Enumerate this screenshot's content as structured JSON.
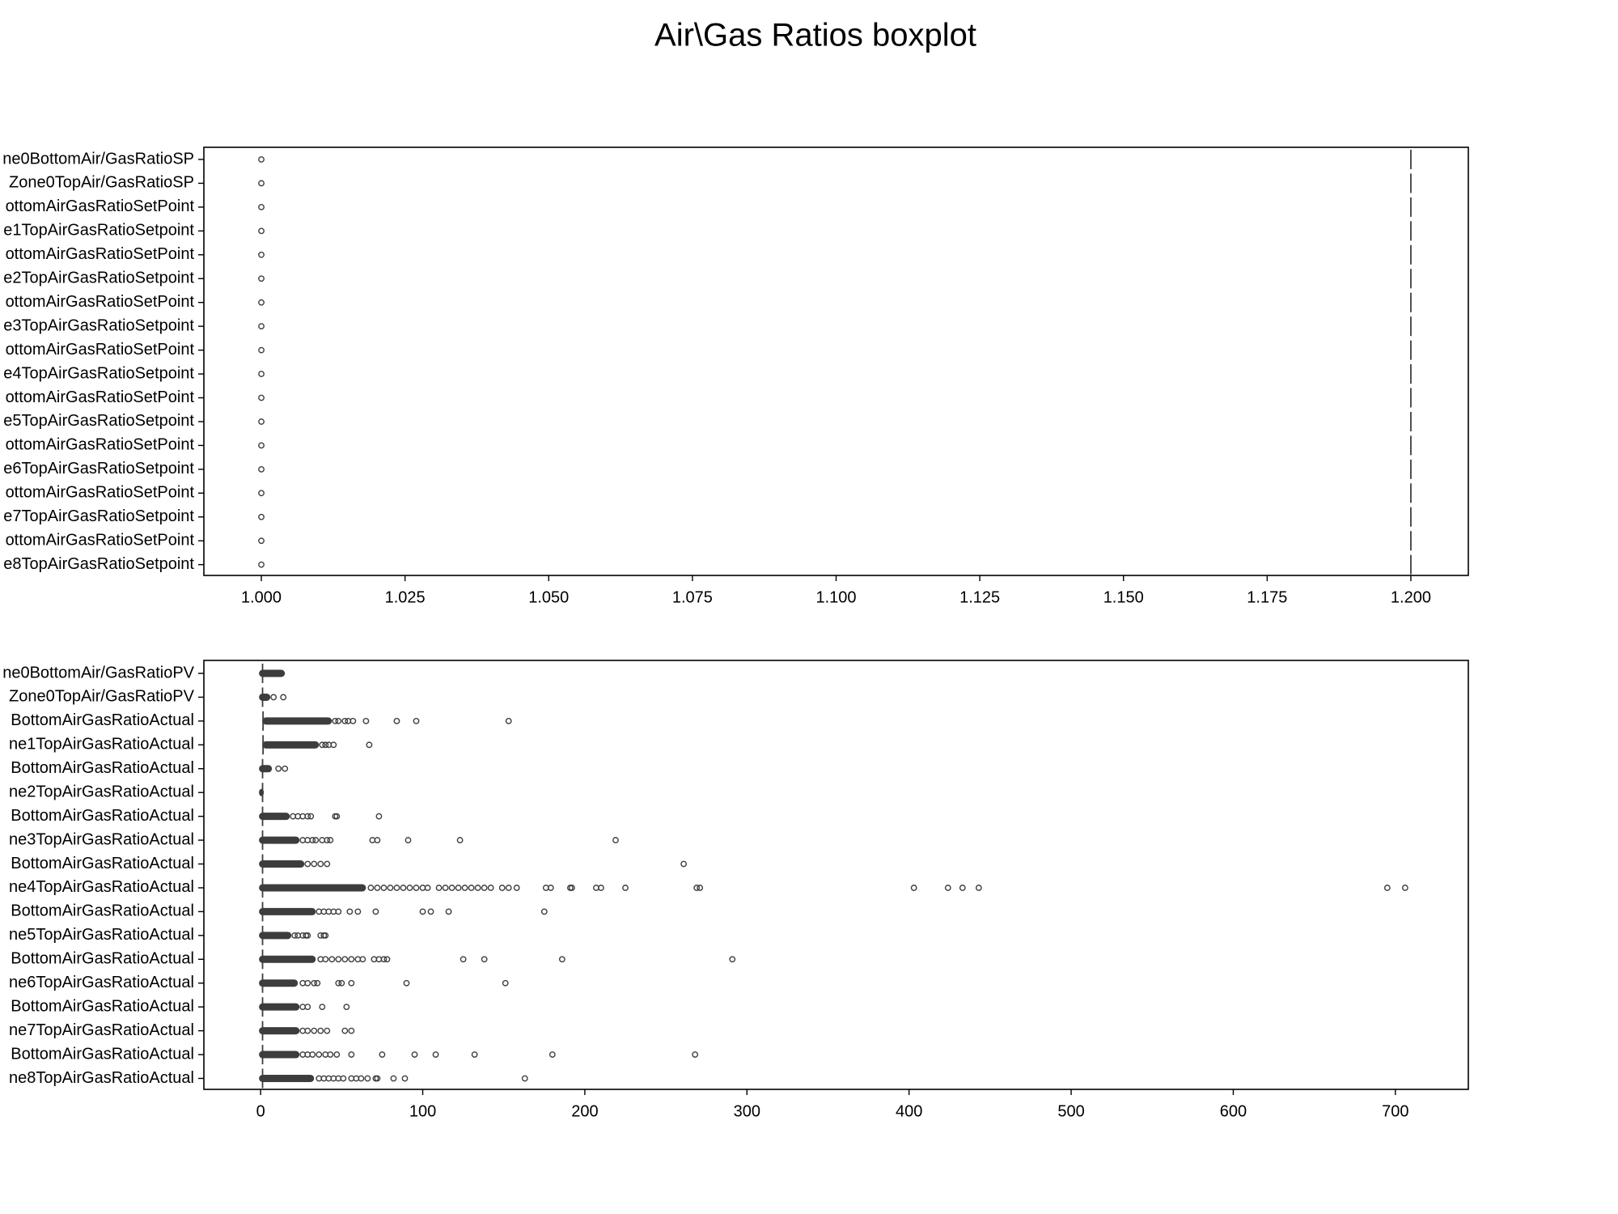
{
  "figure": {
    "title": "Air\\Gas Ratios boxplot"
  },
  "colors": {
    "box": "#3d3d3d",
    "axis": "#000000",
    "background": "#ffffff"
  },
  "chart_data": [
    {
      "type": "boxplot",
      "orientation": "horizontal",
      "title": "",
      "xlim": [
        0.99,
        1.21
      ],
      "grid": false,
      "xticks": [
        1.0,
        1.025,
        1.05,
        1.075,
        1.1,
        1.125,
        1.15,
        1.175,
        1.2
      ],
      "xtick_labels": [
        "1.000",
        "1.025",
        "1.050",
        "1.075",
        "1.100",
        "1.125",
        "1.150",
        "1.175",
        "1.200"
      ],
      "series": [
        {
          "label": "ne0BottomAir/GasRatioSP",
          "median": 1.2,
          "outliers": [
            1.0
          ]
        },
        {
          "label": "Zone0TopAir/GasRatioSP",
          "median": 1.2,
          "outliers": [
            1.0
          ]
        },
        {
          "label": "ottomAirGasRatioSetPoint",
          "median": 1.2,
          "outliers": [
            1.0
          ]
        },
        {
          "label": "e1TopAirGasRatioSetpoint",
          "median": 1.2,
          "outliers": [
            1.0
          ]
        },
        {
          "label": "ottomAirGasRatioSetPoint",
          "median": 1.2,
          "outliers": [
            1.0
          ]
        },
        {
          "label": "e2TopAirGasRatioSetpoint",
          "median": 1.2,
          "outliers": [
            1.0
          ]
        },
        {
          "label": "ottomAirGasRatioSetPoint",
          "median": 1.2,
          "outliers": [
            1.0
          ]
        },
        {
          "label": "e3TopAirGasRatioSetpoint",
          "median": 1.2,
          "outliers": [
            1.0
          ]
        },
        {
          "label": "ottomAirGasRatioSetPoint",
          "median": 1.2,
          "outliers": [
            1.0
          ]
        },
        {
          "label": "e4TopAirGasRatioSetpoint",
          "median": 1.2,
          "outliers": [
            1.0
          ]
        },
        {
          "label": "ottomAirGasRatioSetPoint",
          "median": 1.2,
          "outliers": [
            1.0
          ]
        },
        {
          "label": "e5TopAirGasRatioSetpoint",
          "median": 1.2,
          "outliers": [
            1.0
          ]
        },
        {
          "label": "ottomAirGasRatioSetPoint",
          "median": 1.2,
          "outliers": [
            1.0
          ]
        },
        {
          "label": "e6TopAirGasRatioSetpoint",
          "median": 1.2,
          "outliers": [
            1.0
          ]
        },
        {
          "label": "ottomAirGasRatioSetPoint",
          "median": 1.2,
          "outliers": [
            1.0
          ]
        },
        {
          "label": "e7TopAirGasRatioSetpoint",
          "median": 1.2,
          "outliers": [
            1.0
          ]
        },
        {
          "label": "ottomAirGasRatioSetPoint",
          "median": 1.2,
          "outliers": [
            1.0
          ]
        },
        {
          "label": "e8TopAirGasRatioSetpoint",
          "median": 1.2,
          "outliers": [
            1.0
          ]
        }
      ]
    },
    {
      "type": "boxplot",
      "orientation": "horizontal",
      "title": "",
      "xlim": [
        -35,
        745
      ],
      "grid": false,
      "xticks": [
        0,
        100,
        200,
        300,
        400,
        500,
        600,
        700
      ],
      "xtick_labels": [
        "0",
        "100",
        "200",
        "300",
        "400",
        "500",
        "600",
        "700"
      ],
      "series": [
        {
          "label": "ne0BottomAir/GasRatioPV",
          "median": 1.2,
          "dense_range": [
            -1,
            15
          ],
          "outliers": []
        },
        {
          "label": "Zone0TopAir/GasRatioPV",
          "median": 1.2,
          "dense_range": [
            -1,
            6
          ],
          "outliers": [
            8,
            14
          ]
        },
        {
          "label": "BottomAirGasRatioActual",
          "median": 1.5,
          "dense_range": [
            1,
            44
          ],
          "outliers": [
            46,
            48,
            52,
            54,
            57,
            65,
            84,
            96,
            153
          ]
        },
        {
          "label": "ne1TopAirGasRatioActual",
          "median": 1.5,
          "dense_range": [
            1,
            36
          ],
          "outliers": [
            38,
            40,
            42,
            45,
            67
          ]
        },
        {
          "label": "BottomAirGasRatioActual",
          "median": 1.2,
          "dense_range": [
            -1,
            7
          ],
          "outliers": [
            11,
            15
          ]
        },
        {
          "label": "ne2TopAirGasRatioActual",
          "median": 1.2,
          "dense_range": [
            -1,
            2
          ],
          "outliers": []
        },
        {
          "label": "BottomAirGasRatioActual",
          "median": 1.2,
          "dense_range": [
            -1,
            18
          ],
          "outliers": [
            20,
            23,
            26,
            29,
            31,
            46,
            47,
            73
          ]
        },
        {
          "label": "ne3TopAirGasRatioActual",
          "median": 1.2,
          "dense_range": [
            -1,
            24
          ],
          "outliers": [
            26,
            29,
            32,
            34,
            38,
            41,
            43,
            69,
            72,
            91,
            123,
            219
          ]
        },
        {
          "label": "BottomAirGasRatioActual",
          "median": 1.2,
          "dense_range": [
            -1,
            27
          ],
          "outliers": [
            29,
            33,
            37,
            41,
            261
          ]
        },
        {
          "label": "ne4TopAirGasRatioActual",
          "median": 1.2,
          "dense_range": [
            -1,
            65
          ],
          "outliers": [
            68,
            72,
            76,
            80,
            84,
            88,
            92,
            96,
            100,
            103,
            110,
            114,
            118,
            122,
            126,
            130,
            134,
            138,
            142,
            149,
            153,
            158,
            176,
            179,
            191,
            192,
            207,
            210,
            225,
            269,
            271,
            403,
            424,
            433,
            443,
            695,
            706
          ]
        },
        {
          "label": "BottomAirGasRatioActual",
          "median": 1.2,
          "dense_range": [
            -1,
            34
          ],
          "outliers": [
            36,
            39,
            42,
            45,
            48,
            55,
            60,
            71,
            100,
            105,
            116,
            175
          ]
        },
        {
          "label": "ne5TopAirGasRatioActual",
          "median": 1.2,
          "dense_range": [
            -1,
            19
          ],
          "outliers": [
            21,
            23,
            26,
            28,
            29,
            37,
            39,
            40
          ]
        },
        {
          "label": "BottomAirGasRatioActual",
          "median": 1.2,
          "dense_range": [
            -1,
            34
          ],
          "outliers": [
            37,
            40,
            44,
            48,
            52,
            56,
            60,
            63,
            70,
            73,
            76,
            78,
            125,
            138,
            186,
            291
          ]
        },
        {
          "label": "ne6TopAirGasRatioActual",
          "median": 1.2,
          "dense_range": [
            -1,
            23
          ],
          "outliers": [
            26,
            29,
            33,
            35,
            48,
            50,
            56,
            90,
            151
          ]
        },
        {
          "label": "BottomAirGasRatioActual",
          "median": 1.2,
          "dense_range": [
            -1,
            24
          ],
          "outliers": [
            26,
            29,
            38,
            53
          ]
        },
        {
          "label": "ne7TopAirGasRatioActual",
          "median": 1.2,
          "dense_range": [
            -1,
            24
          ],
          "outliers": [
            26,
            29,
            33,
            37,
            41,
            52,
            56
          ]
        },
        {
          "label": "BottomAirGasRatioActual",
          "median": 1.2,
          "dense_range": [
            -1,
            24
          ],
          "outliers": [
            26,
            29,
            32,
            36,
            40,
            43,
            47,
            56,
            75,
            95,
            108,
            132,
            180,
            268
          ]
        },
        {
          "label": "ne8TopAirGasRatioActual",
          "median": 1.2,
          "dense_range": [
            -1,
            33
          ],
          "outliers": [
            36,
            39,
            42,
            45,
            48,
            51,
            56,
            59,
            62,
            66,
            71,
            72,
            82,
            89,
            163
          ]
        }
      ]
    }
  ]
}
